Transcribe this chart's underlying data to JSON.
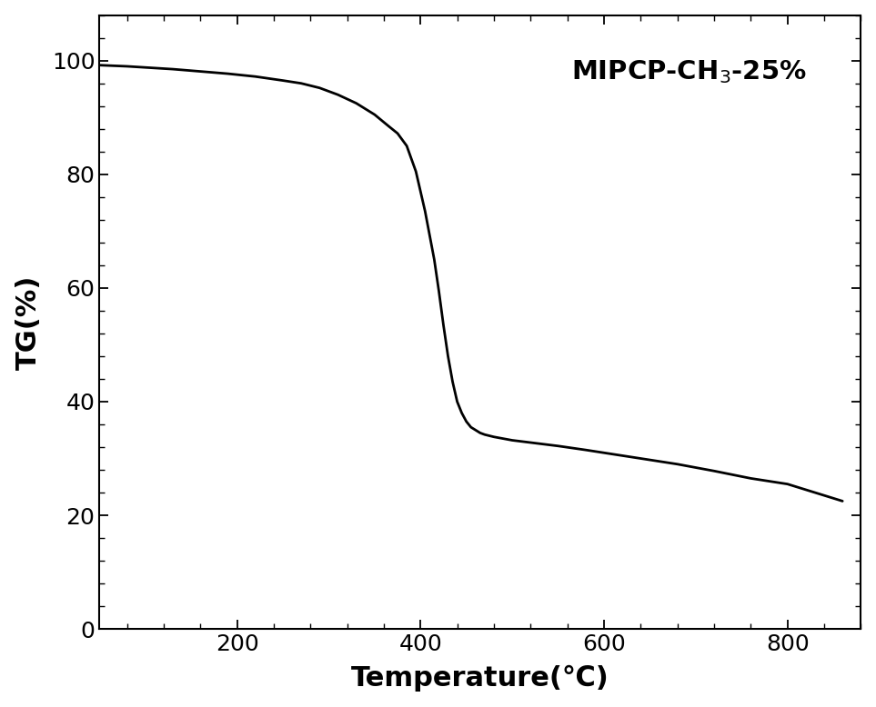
{
  "title": "",
  "xlabel": "Temperature(℃)",
  "ylabel": "TG(%)",
  "annotation": "MIPCP-CH$_3$-25%",
  "xlim": [
    50,
    880
  ],
  "ylim": [
    0,
    108
  ],
  "yticks": [
    0,
    20,
    40,
    60,
    80,
    100
  ],
  "xticks": [
    200,
    400,
    600,
    800
  ],
  "line_color": "#000000",
  "line_width": 2.0,
  "background_color": "#ffffff",
  "x": [
    50,
    80,
    100,
    130,
    160,
    190,
    220,
    250,
    270,
    290,
    310,
    330,
    350,
    365,
    375,
    385,
    395,
    405,
    415,
    420,
    425,
    430,
    435,
    440,
    445,
    450,
    455,
    460,
    465,
    470,
    475,
    480,
    490,
    500,
    520,
    550,
    580,
    600,
    640,
    680,
    720,
    760,
    800,
    840,
    860
  ],
  "y": [
    99.2,
    99.0,
    98.8,
    98.5,
    98.1,
    97.7,
    97.2,
    96.5,
    96.0,
    95.2,
    94.0,
    92.5,
    90.5,
    88.5,
    87.2,
    85.0,
    80.5,
    73.5,
    65.0,
    59.5,
    53.5,
    48.0,
    43.5,
    40.0,
    38.0,
    36.5,
    35.5,
    35.0,
    34.5,
    34.2,
    34.0,
    33.8,
    33.5,
    33.2,
    32.8,
    32.2,
    31.5,
    31.0,
    30.0,
    29.0,
    27.8,
    26.5,
    25.5,
    23.5,
    22.5
  ]
}
